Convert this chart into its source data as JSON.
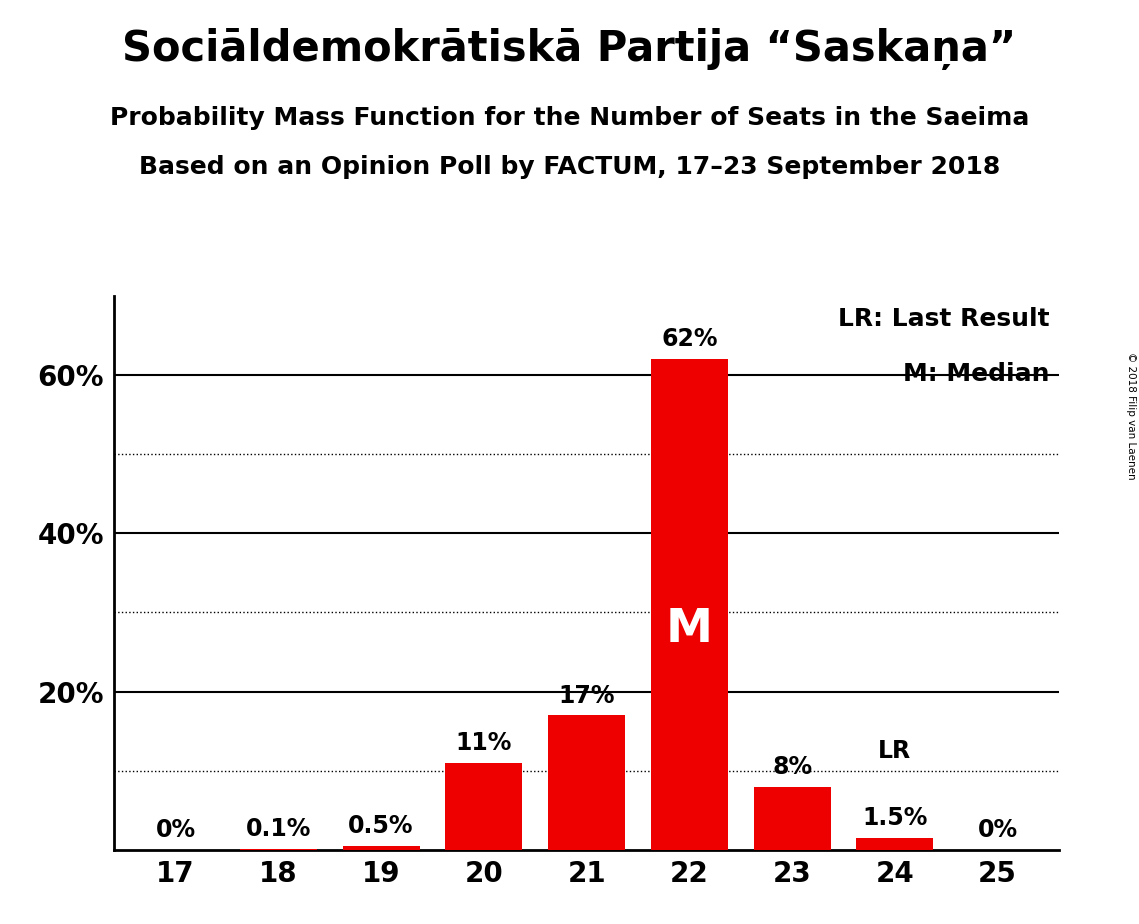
{
  "title": "Sociāldemokrātiskā Partija “Saskaņa”",
  "subtitle1": "Probability Mass Function for the Number of Seats in the Saeima",
  "subtitle2": "Based on an Opinion Poll by FACTUM, 17–23 September 2018",
  "copyright": "© 2018 Filip van Laenen",
  "categories": [
    17,
    18,
    19,
    20,
    21,
    22,
    23,
    24,
    25
  ],
  "values": [
    0.0,
    0.1,
    0.5,
    11.0,
    17.0,
    62.0,
    8.0,
    1.5,
    0.0
  ],
  "labels": [
    "0%",
    "0.1%",
    "0.5%",
    "11%",
    "17%",
    "62%",
    "8%",
    "1.5%",
    "0%"
  ],
  "bar_color": "#ee0000",
  "median_seat": 22,
  "lr_seat": 24,
  "median_label": "M",
  "lr_label": "LR",
  "legend_lr": "LR: Last Result",
  "legend_m": "M: Median",
  "ylim": [
    0,
    70
  ],
  "solid_gridlines": [
    20,
    40,
    60
  ],
  "dotted_gridlines": [
    10,
    30,
    50
  ],
  "ytick_positions": [
    20,
    40,
    60
  ],
  "ytick_labels": [
    "20%",
    "40%",
    "60%"
  ],
  "background_color": "#ffffff",
  "title_fontsize": 30,
  "subtitle_fontsize": 18,
  "label_fontsize": 17,
  "tick_fontsize": 20,
  "legend_fontsize": 18,
  "median_label_fontsize": 34,
  "bar_width": 0.75
}
